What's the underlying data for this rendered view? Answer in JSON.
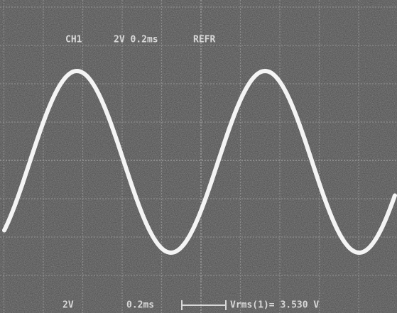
{
  "top": {
    "channel": "CH1",
    "scale": "2V 0.2ms",
    "mode": "REFR"
  },
  "bottom": {
    "volts": "2V",
    "time": "0.2ms",
    "measurement": "Vrms(1)= 3.530 V"
  }
}
